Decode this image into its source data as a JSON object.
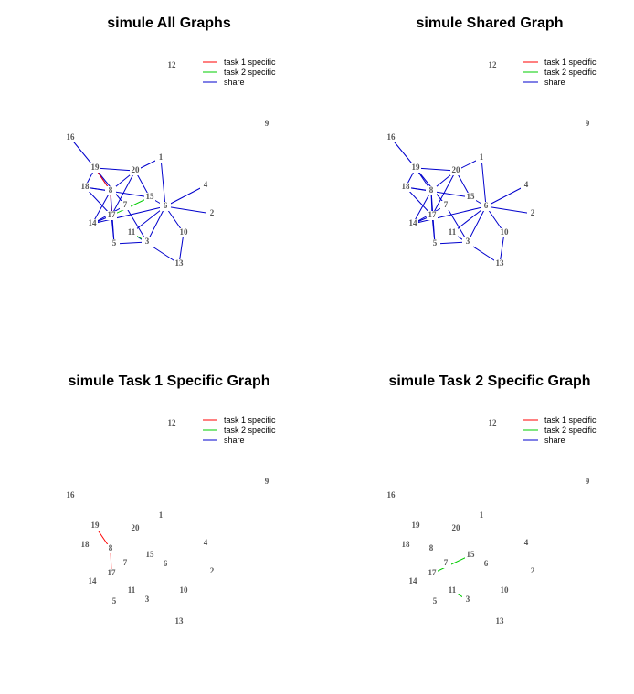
{
  "nodes": [
    "1",
    "2",
    "3",
    "4",
    "5",
    "6",
    "7",
    "8",
    "9",
    "10",
    "11",
    "12",
    "13",
    "14",
    "15",
    "16",
    "17",
    "18",
    "19",
    "20"
  ],
  "legend": [
    {
      "label": "task 1 specific",
      "color": "#ff0000"
    },
    {
      "label": "task 2 specific",
      "color": "#00cc00"
    },
    {
      "label": "share",
      "color": "#0000cc"
    }
  ],
  "panels": [
    {
      "id": "all",
      "title": "simule All Graphs",
      "edges": [
        [
          "16",
          "19",
          "share"
        ],
        [
          "19",
          "20",
          "share"
        ],
        [
          "20",
          "1",
          "share"
        ],
        [
          "1",
          "6",
          "share"
        ],
        [
          "19",
          "18",
          "share"
        ],
        [
          "19",
          "8",
          "share"
        ],
        [
          "19",
          "7",
          "share"
        ],
        [
          "20",
          "8",
          "share"
        ],
        [
          "20",
          "15",
          "share"
        ],
        [
          "18",
          "8",
          "share"
        ],
        [
          "18",
          "15",
          "share"
        ],
        [
          "8",
          "14",
          "share"
        ],
        [
          "8",
          "17",
          "share"
        ],
        [
          "17",
          "14",
          "share"
        ],
        [
          "14",
          "6",
          "share"
        ],
        [
          "15",
          "6",
          "share"
        ],
        [
          "6",
          "4",
          "share"
        ],
        [
          "6",
          "2",
          "share"
        ],
        [
          "6",
          "10",
          "share"
        ],
        [
          "10",
          "13",
          "share"
        ],
        [
          "11",
          "13",
          "share"
        ],
        [
          "5",
          "3",
          "share"
        ],
        [
          "5",
          "8",
          "share"
        ],
        [
          "17",
          "5",
          "share"
        ],
        [
          "11",
          "6",
          "share"
        ],
        [
          "3",
          "6",
          "share"
        ],
        [
          "7",
          "3",
          "share"
        ],
        [
          "14",
          "7",
          "share"
        ],
        [
          "18",
          "17",
          "share"
        ],
        [
          "20",
          "17",
          "share"
        ],
        [
          "19",
          "8",
          "task1"
        ],
        [
          "8",
          "17",
          "task1"
        ],
        [
          "17",
          "15",
          "task2"
        ],
        [
          "11",
          "3",
          "task2"
        ]
      ]
    },
    {
      "id": "shared",
      "title": "simule Shared Graph",
      "edges": [
        [
          "16",
          "19",
          "share"
        ],
        [
          "19",
          "20",
          "share"
        ],
        [
          "20",
          "1",
          "share"
        ],
        [
          "1",
          "6",
          "share"
        ],
        [
          "19",
          "18",
          "share"
        ],
        [
          "19",
          "8",
          "share"
        ],
        [
          "19",
          "7",
          "share"
        ],
        [
          "20",
          "8",
          "share"
        ],
        [
          "20",
          "15",
          "share"
        ],
        [
          "18",
          "8",
          "share"
        ],
        [
          "18",
          "15",
          "share"
        ],
        [
          "8",
          "14",
          "share"
        ],
        [
          "8",
          "17",
          "share"
        ],
        [
          "17",
          "14",
          "share"
        ],
        [
          "14",
          "6",
          "share"
        ],
        [
          "15",
          "6",
          "share"
        ],
        [
          "6",
          "4",
          "share"
        ],
        [
          "6",
          "2",
          "share"
        ],
        [
          "6",
          "10",
          "share"
        ],
        [
          "10",
          "13",
          "share"
        ],
        [
          "11",
          "13",
          "share"
        ],
        [
          "5",
          "3",
          "share"
        ],
        [
          "5",
          "8",
          "share"
        ],
        [
          "17",
          "5",
          "share"
        ],
        [
          "11",
          "6",
          "share"
        ],
        [
          "3",
          "6",
          "share"
        ],
        [
          "7",
          "3",
          "share"
        ],
        [
          "14",
          "7",
          "share"
        ],
        [
          "18",
          "17",
          "share"
        ],
        [
          "20",
          "17",
          "share"
        ]
      ]
    },
    {
      "id": "task1",
      "title": "simule Task 1 Specific Graph",
      "edges": [
        [
          "19",
          "8",
          "task1"
        ],
        [
          "8",
          "17",
          "task1"
        ]
      ]
    },
    {
      "id": "task2",
      "title": "simule Task 2 Specific Graph",
      "edges": [
        [
          "17",
          "15",
          "task2"
        ],
        [
          "11",
          "3",
          "task2"
        ]
      ]
    }
  ]
}
